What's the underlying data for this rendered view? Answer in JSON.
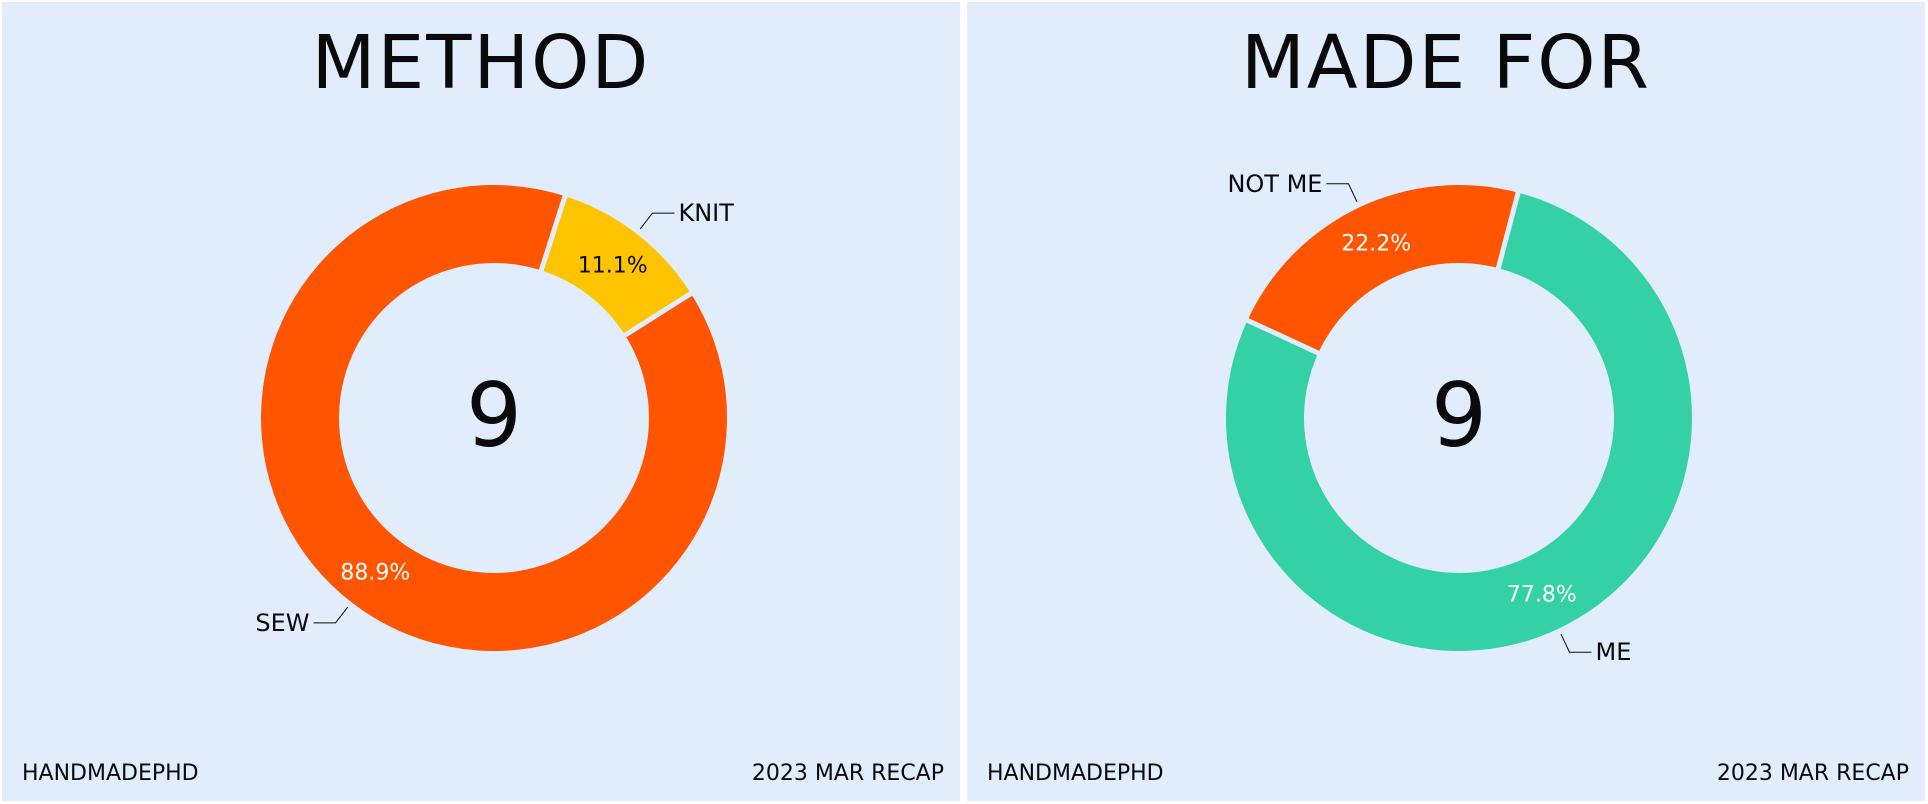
{
  "colors": {
    "background": "#e1edfc",
    "divider": "#ffffff",
    "text": "#0a0a0a",
    "orange": "#ff5500",
    "yellow": "#ffc400",
    "green": "#33d1a4"
  },
  "chart_data": [
    {
      "type": "pie",
      "style": "donut",
      "title": "METHOD",
      "center_label": "9",
      "slices": [
        {
          "label": "SEW",
          "value": 88.9,
          "display": "88.9%",
          "color": "#ff5500"
        },
        {
          "label": "KNIT",
          "value": 11.1,
          "display": "11.1%",
          "color": "#ffc400"
        }
      ]
    },
    {
      "type": "pie",
      "style": "donut",
      "title": "MADE FOR",
      "center_label": "9",
      "slices": [
        {
          "label": "ME",
          "value": 77.8,
          "display": "77.8%",
          "color": "#33d1a4"
        },
        {
          "label": "NOT ME",
          "value": 22.2,
          "display": "22.2%",
          "color": "#ff5500"
        }
      ]
    }
  ],
  "footer": {
    "brand": "HANDMADEPHD",
    "recap": "2023 MAR RECAP"
  }
}
